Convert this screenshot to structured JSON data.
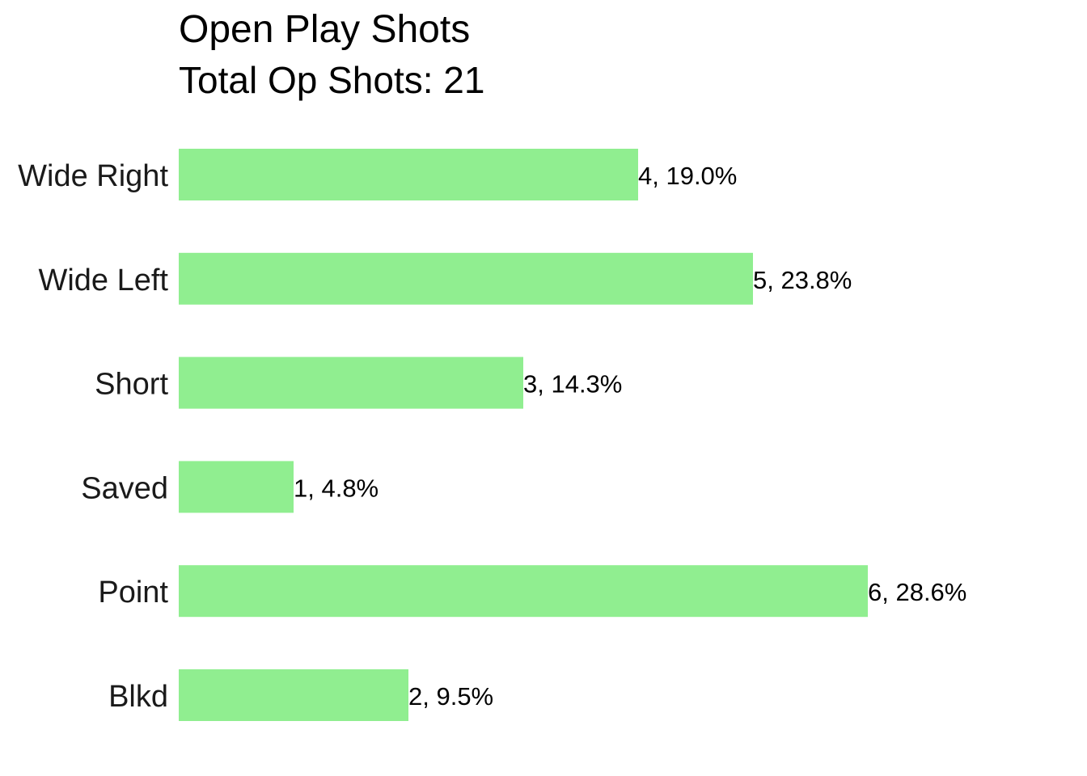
{
  "chart_data": {
    "type": "bar",
    "orientation": "horizontal",
    "title": "Open Play Shots",
    "subtitle": "Total Op Shots: 21",
    "xlabel": "",
    "ylabel": "",
    "categories": [
      "Wide Right",
      "Wide Left",
      "Short",
      "Saved",
      "Point",
      "Blkd"
    ],
    "values": [
      4,
      5,
      3,
      1,
      6,
      2
    ],
    "data_labels": [
      "4, 19.0%",
      "5, 23.8%",
      "3, 14.3%",
      "1, 4.8%",
      "6, 28.6%",
      "2, 9.5%"
    ],
    "xlim": [
      0,
      6
    ],
    "grid": false,
    "legend": "none",
    "bar_color": "#90EE90"
  }
}
